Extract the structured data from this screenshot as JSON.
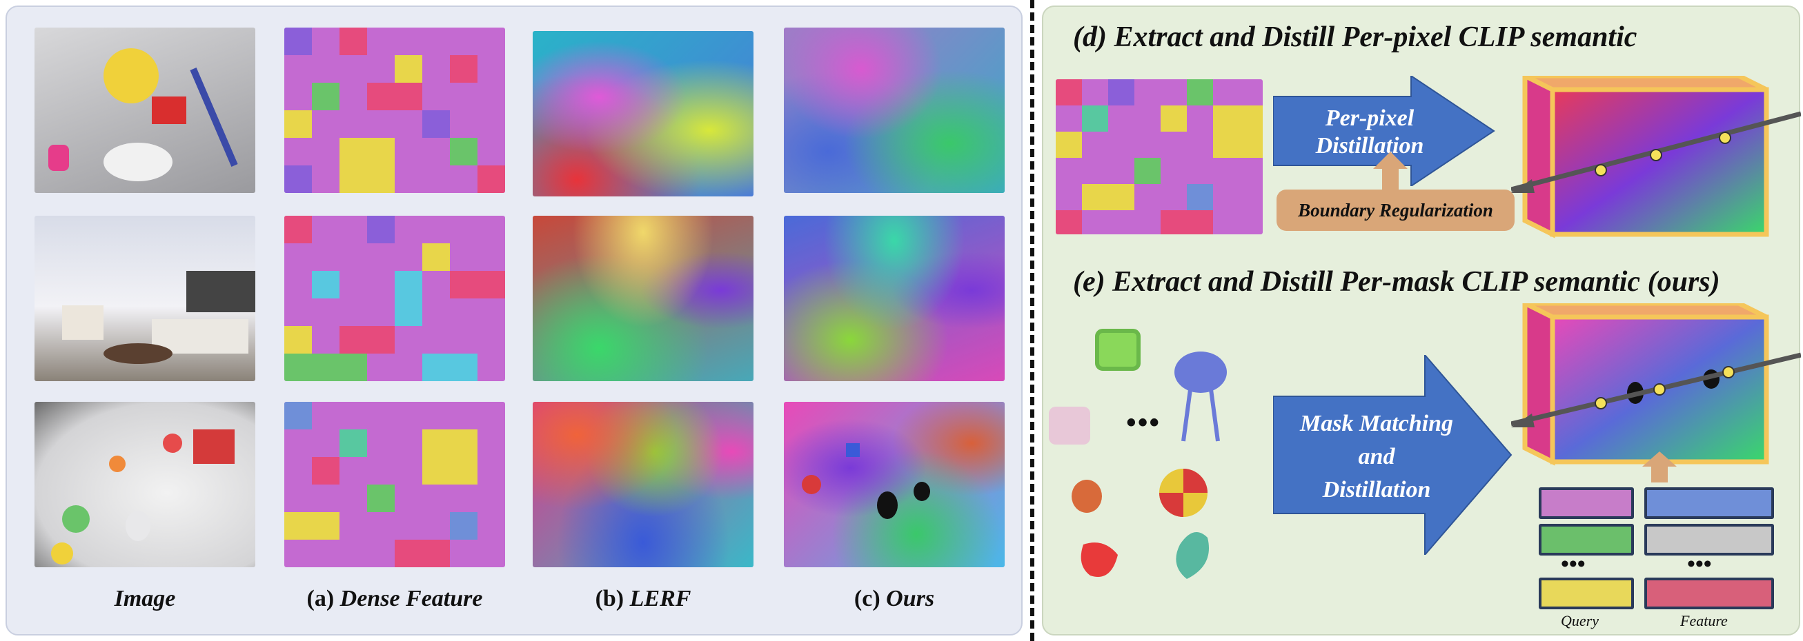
{
  "columns": {
    "image": "Image",
    "dense_prefix": "(a)",
    "dense_name": "Dense Feature",
    "lerf_prefix": "(b)",
    "lerf_name": "LERF",
    "ours_prefix": "(c)",
    "ours_name": "Ours"
  },
  "section_d": {
    "title": "(d) Extract and Distill Per-pixel CLIP semantic",
    "arrow_line1": "Per-pixel",
    "arrow_line2": "Distillation",
    "boundary_label": "Boundary Regularization"
  },
  "section_e": {
    "title": "(e) Extract and Distill Per-mask CLIP semantic (ours)",
    "ellipsis": "•••",
    "arrow_line1": "Mask Matching",
    "arrow_line2": "and",
    "arrow_line3": "Distillation",
    "query_label": "Query",
    "feature_label": "Feature",
    "dots": "•••"
  },
  "colors": {
    "left_panel": "#e8ebf4",
    "right_panel": "#e6efdc",
    "arrow_blue": "#4472c4",
    "boundary_box": "#d9a678",
    "cube_frame": "#f5c65a",
    "query_colors": [
      "#c77dc9",
      "#6bbf6b",
      "#e8d85a"
    ],
    "feature_colors": [
      "#6f8fd8",
      "#c8c8c8",
      "#d8607a"
    ]
  }
}
